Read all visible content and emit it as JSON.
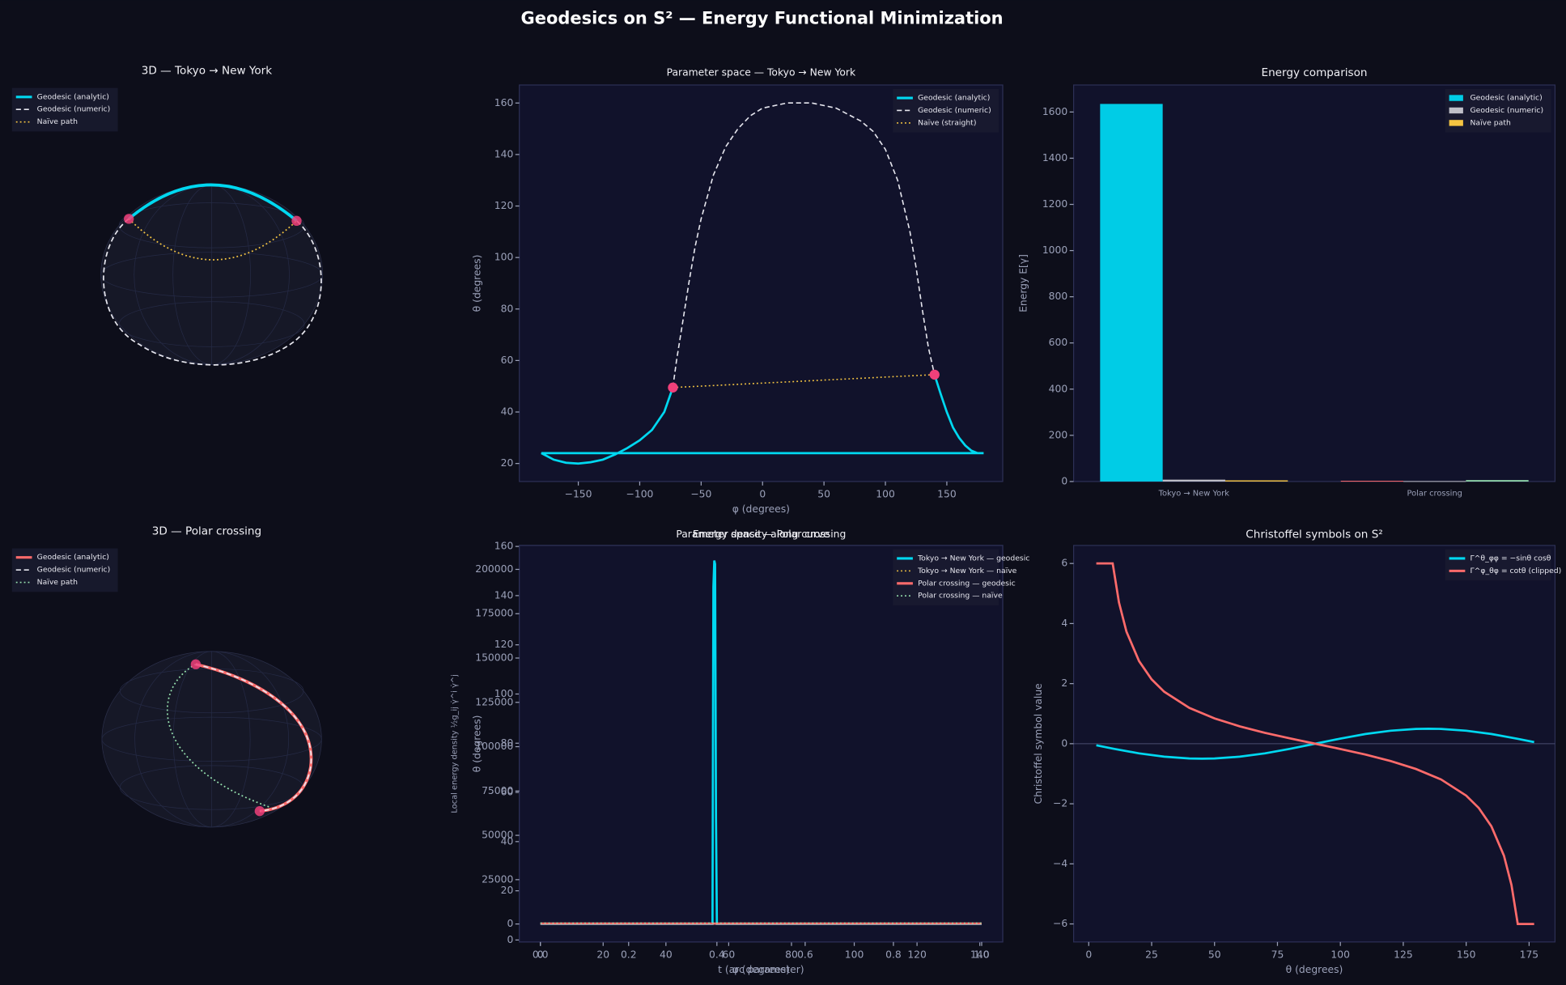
{
  "title": "Geodesics on S² — Energy Functional Minimization",
  "chart_data": [
    {
      "type": "sphere",
      "title": "3D — Tokyo → New York",
      "legend": "upper left",
      "series": [
        {
          "name": "Geodesic (analytic)",
          "color": "#00d8f0",
          "style": "solid"
        },
        {
          "name": "Geodesic (numeric)",
          "color": "#e6e6ee",
          "style": "dashed"
        },
        {
          "name": "Naïve path",
          "color": "#f5c542",
          "style": "dotted"
        }
      ]
    },
    {
      "type": "line",
      "title": "Parameter space — Tokyo → New York",
      "xlabel": "φ  (degrees)",
      "ylabel": "θ  (degrees)",
      "xlim": [
        -198,
        195.5
      ],
      "ylim": [
        13,
        167
      ],
      "xticks": [
        {
          "value": -150,
          "label": "−150"
        },
        {
          "value": -100,
          "label": "−100"
        },
        {
          "value": -50,
          "label": "−50"
        },
        0,
        50,
        100,
        150
      ],
      "yticks": [
        20,
        40,
        60,
        80,
        100,
        120,
        140,
        160
      ],
      "legend": "upper right",
      "series": [
        {
          "name": "Geodesic (analytic)",
          "color": "#00d8f0",
          "style": "solid",
          "x": [
            -73,
            -80,
            -90,
            -100,
            -110,
            -120,
            -130,
            -140,
            -150,
            -160,
            -170,
            -180,
            180,
            175,
            170,
            165,
            160,
            155,
            150,
            145,
            140
          ],
          "values": [
            49.5,
            40,
            33,
            29,
            26,
            23.5,
            21.5,
            20.5,
            20,
            20.3,
            21.5,
            24,
            24,
            24,
            25,
            27,
            30,
            34,
            40,
            47,
            54.5
          ]
        },
        {
          "name": "Geodesic (numeric)",
          "color": "#e6e6ee",
          "style": "dashed",
          "x": [
            -73,
            -70,
            -65,
            -60,
            -55,
            -50,
            -40,
            -30,
            -20,
            -10,
            0,
            20,
            40,
            60,
            80,
            90,
            100,
            110,
            120,
            125,
            130,
            135,
            140
          ],
          "values": [
            49.5,
            60,
            75,
            90,
            104,
            115,
            132,
            143,
            150,
            155,
            158,
            160,
            160,
            158,
            153,
            149,
            142,
            130,
            110,
            96,
            80,
            65,
            54.5
          ]
        },
        {
          "name": "Naïve (straight)",
          "color": "#f5c542",
          "style": "dotted",
          "x": [
            -73,
            140
          ],
          "values": [
            49.5,
            54.5
          ]
        }
      ],
      "markers": {
        "color": "#f0407a",
        "x": [
          -73,
          140
        ],
        "values": [
          49.5,
          54.5
        ]
      }
    },
    {
      "type": "bar",
      "title": "Energy comparison",
      "ylabel": "Energy  E[γ]",
      "categories": [
        "Tokyo → New York",
        "Polar crossing"
      ],
      "ylim": [
        0,
        1717
      ],
      "yticks": [
        0,
        200,
        400,
        600,
        800,
        1000,
        1200,
        1400,
        1600
      ],
      "legend": "upper right",
      "series": [
        {
          "name": "Geodesic (analytic)",
          "color": "#00cce6",
          "colors": [
            "#00cce6",
            "#ff6b6b"
          ],
          "values": [
            1635,
            3
          ]
        },
        {
          "name": "Geodesic (numeric)",
          "color": "#c0c0c8",
          "colors": [
            "#c0c0c8",
            "#c0c0c8"
          ],
          "values": [
            8,
            2
          ]
        },
        {
          "name": "Naïve path",
          "color": "#f5c542",
          "colors": [
            "#f5c542",
            "#98e4b0"
          ],
          "values": [
            5,
            6
          ]
        }
      ]
    },
    {
      "type": "sphere",
      "title": "3D — Polar crossing",
      "legend": "upper left",
      "series": [
        {
          "name": "Geodesic (analytic)",
          "color": "#ff6b6b",
          "style": "solid"
        },
        {
          "name": "Geodesic (numeric)",
          "color": "#e6e6ee",
          "style": "dashed"
        },
        {
          "name": "Naïve path",
          "color": "#98e4b0",
          "style": "dotted"
        }
      ]
    },
    {
      "type": "line",
      "title": "Parameter space — Polar crossing",
      "xlabel": "φ  (degrees)",
      "ylabel": "θ  (degrees)",
      "xlim": [
        -6.7,
        147.3
      ],
      "ylim": [
        -0.8,
        160.4
      ],
      "xticks": [
        0,
        20,
        40,
        60,
        80,
        100,
        120,
        140
      ],
      "yticks": [
        0,
        20,
        40,
        60,
        80,
        100,
        120,
        140,
        160
      ],
      "series": []
    },
    {
      "type": "line",
      "title": "Energy density along curve",
      "xlabel": "t  (arc parameter)",
      "ylabel": "Local energy density ½g_ij γ̇^i γ̇^j",
      "xlim": [
        -0.0477,
        1.0477
      ],
      "ylim": [
        -10140,
        213500
      ],
      "xticks": [
        {
          "value": 0,
          "label": "0.0"
        },
        0.2,
        0.4,
        0.6,
        0.8,
        {
          "value": 1,
          "label": "1.0"
        }
      ],
      "yticks": [
        0,
        25000,
        50000,
        75000,
        100000,
        125000,
        150000,
        175000,
        200000
      ],
      "legend": "upper right",
      "series": [
        {
          "name": "Tokyo → New York — geodesic",
          "color": "#00d8f0",
          "style": "solid",
          "x": [
            0,
            0.39,
            0.392,
            0.394,
            0.396,
            0.398,
            0.4,
            1
          ],
          "values": [
            0,
            0,
            190000,
            205000,
            203000,
            60000,
            0,
            0
          ]
        },
        {
          "name": "Tokyo → New York — naïve",
          "color": "#f5c542",
          "style": "dotted",
          "x": [
            0,
            1
          ],
          "values": [
            300,
            300
          ]
        },
        {
          "name": "Polar crossing — geodesic",
          "color": "#ff6b6b",
          "style": "solid",
          "x": [
            0,
            1
          ],
          "values": [
            200,
            200
          ]
        },
        {
          "name": "Polar crossing — naïve",
          "color": "#98e4b0",
          "style": "dotted",
          "x": [
            0,
            1
          ],
          "values": [
            500,
            500
          ]
        }
      ]
    },
    {
      "type": "line",
      "title": "Christoffel symbols on S²",
      "xlabel": "θ  (degrees)",
      "ylabel": "Christoffel symbol value",
      "xlim": [
        -6,
        185.3
      ],
      "ylim": [
        -6.6,
        6.6
      ],
      "xticks": [
        0,
        25,
        50,
        75,
        100,
        125,
        150,
        175
      ],
      "yticks": [
        {
          "value": -6,
          "label": "−6"
        },
        {
          "value": -4,
          "label": "−4"
        },
        {
          "value": -2,
          "label": "−2"
        },
        0,
        2,
        4,
        6
      ],
      "legend": "upper right",
      "series": [
        {
          "name": "Γ^θ_φφ = −sinθ cosθ",
          "color": "#00d8f0",
          "style": "solid",
          "x": [
            3,
            10,
            20,
            30,
            40,
            45,
            50,
            60,
            70,
            80,
            90,
            100,
            110,
            120,
            130,
            135,
            140,
            150,
            160,
            170,
            177
          ],
          "values": [
            -0.052,
            -0.171,
            -0.321,
            -0.433,
            -0.492,
            -0.5,
            -0.492,
            -0.433,
            -0.321,
            -0.171,
            0,
            0.171,
            0.321,
            0.433,
            0.492,
            0.5,
            0.492,
            0.433,
            0.321,
            0.171,
            0.052
          ]
        },
        {
          "name": "Γ^φ_θφ = cotθ  (clipped)",
          "color": "#ff6b6b",
          "style": "solid",
          "x": [
            3,
            9.5,
            12,
            15,
            20,
            25,
            30,
            40,
            50,
            60,
            70,
            80,
            90,
            100,
            110,
            120,
            130,
            140,
            150,
            155,
            160,
            165,
            168,
            170.5,
            177
          ],
          "values": [
            6,
            6,
            4.7,
            3.73,
            2.75,
            2.14,
            1.73,
            1.19,
            0.84,
            0.577,
            0.364,
            0.176,
            0,
            -0.176,
            -0.364,
            -0.577,
            -0.84,
            -1.19,
            -1.73,
            -2.14,
            -2.75,
            -3.73,
            -4.7,
            -6,
            -6
          ]
        }
      ]
    }
  ]
}
